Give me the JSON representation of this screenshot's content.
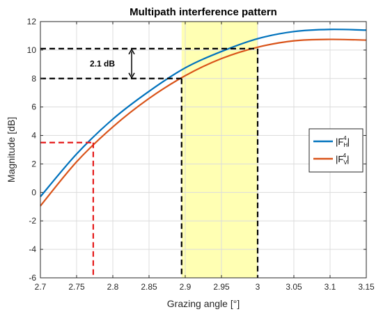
{
  "chart_data": {
    "type": "line",
    "title": "Multipath interference pattern",
    "xlabel": "Grazing angle [°]",
    "ylabel": "Magnitude [dB]",
    "xlim": [
      2.7,
      3.15
    ],
    "ylim": [
      -6,
      12
    ],
    "xticks": [
      "2.7",
      "2.75",
      "2.8",
      "2.85",
      "2.9",
      "2.95",
      "3",
      "3.05",
      "3.1",
      "3.15"
    ],
    "yticks": [
      "-6",
      "-4",
      "-2",
      "0",
      "2",
      "4",
      "6",
      "8",
      "10",
      "12"
    ],
    "grid": true,
    "legend": {
      "position": "right",
      "entries": [
        "|F",
        "|F"
      ],
      "sup": "4",
      "subs": [
        "H",
        "V"
      ],
      "close": "|"
    },
    "series": [
      {
        "name": "|F_H^4|",
        "color": "#0072BD",
        "x": [
          2.7,
          2.75,
          2.8,
          2.85,
          2.9,
          2.95,
          3.0,
          3.05,
          3.1,
          3.15
        ],
        "y": [
          -0.3,
          2.7,
          5.15,
          7.1,
          8.75,
          9.9,
          10.8,
          11.3,
          11.45,
          11.4
        ]
      },
      {
        "name": "|F_V^4|",
        "color": "#D95319",
        "x": [
          2.7,
          2.75,
          2.8,
          2.85,
          2.9,
          2.95,
          3.0,
          3.05,
          3.1,
          3.15
        ],
        "y": [
          -0.95,
          2.15,
          4.6,
          6.6,
          8.2,
          9.4,
          10.2,
          10.65,
          10.75,
          10.7
        ]
      }
    ],
    "highlight_band": {
      "x": [
        2.895,
        3.0
      ],
      "color": "#FFFFB3"
    },
    "reference_lines": [
      {
        "color": "#000000",
        "y": 10.1,
        "x_end": 3.0
      },
      {
        "color": "#000000",
        "y": 8.0,
        "x_end": 2.895
      },
      {
        "color": "#E51A1A",
        "y": 3.5,
        "x_end": 2.773
      }
    ],
    "annotation": {
      "text": "2.1 dB",
      "x": 2.81,
      "y_from": 8.0,
      "y_to": 10.1
    }
  }
}
